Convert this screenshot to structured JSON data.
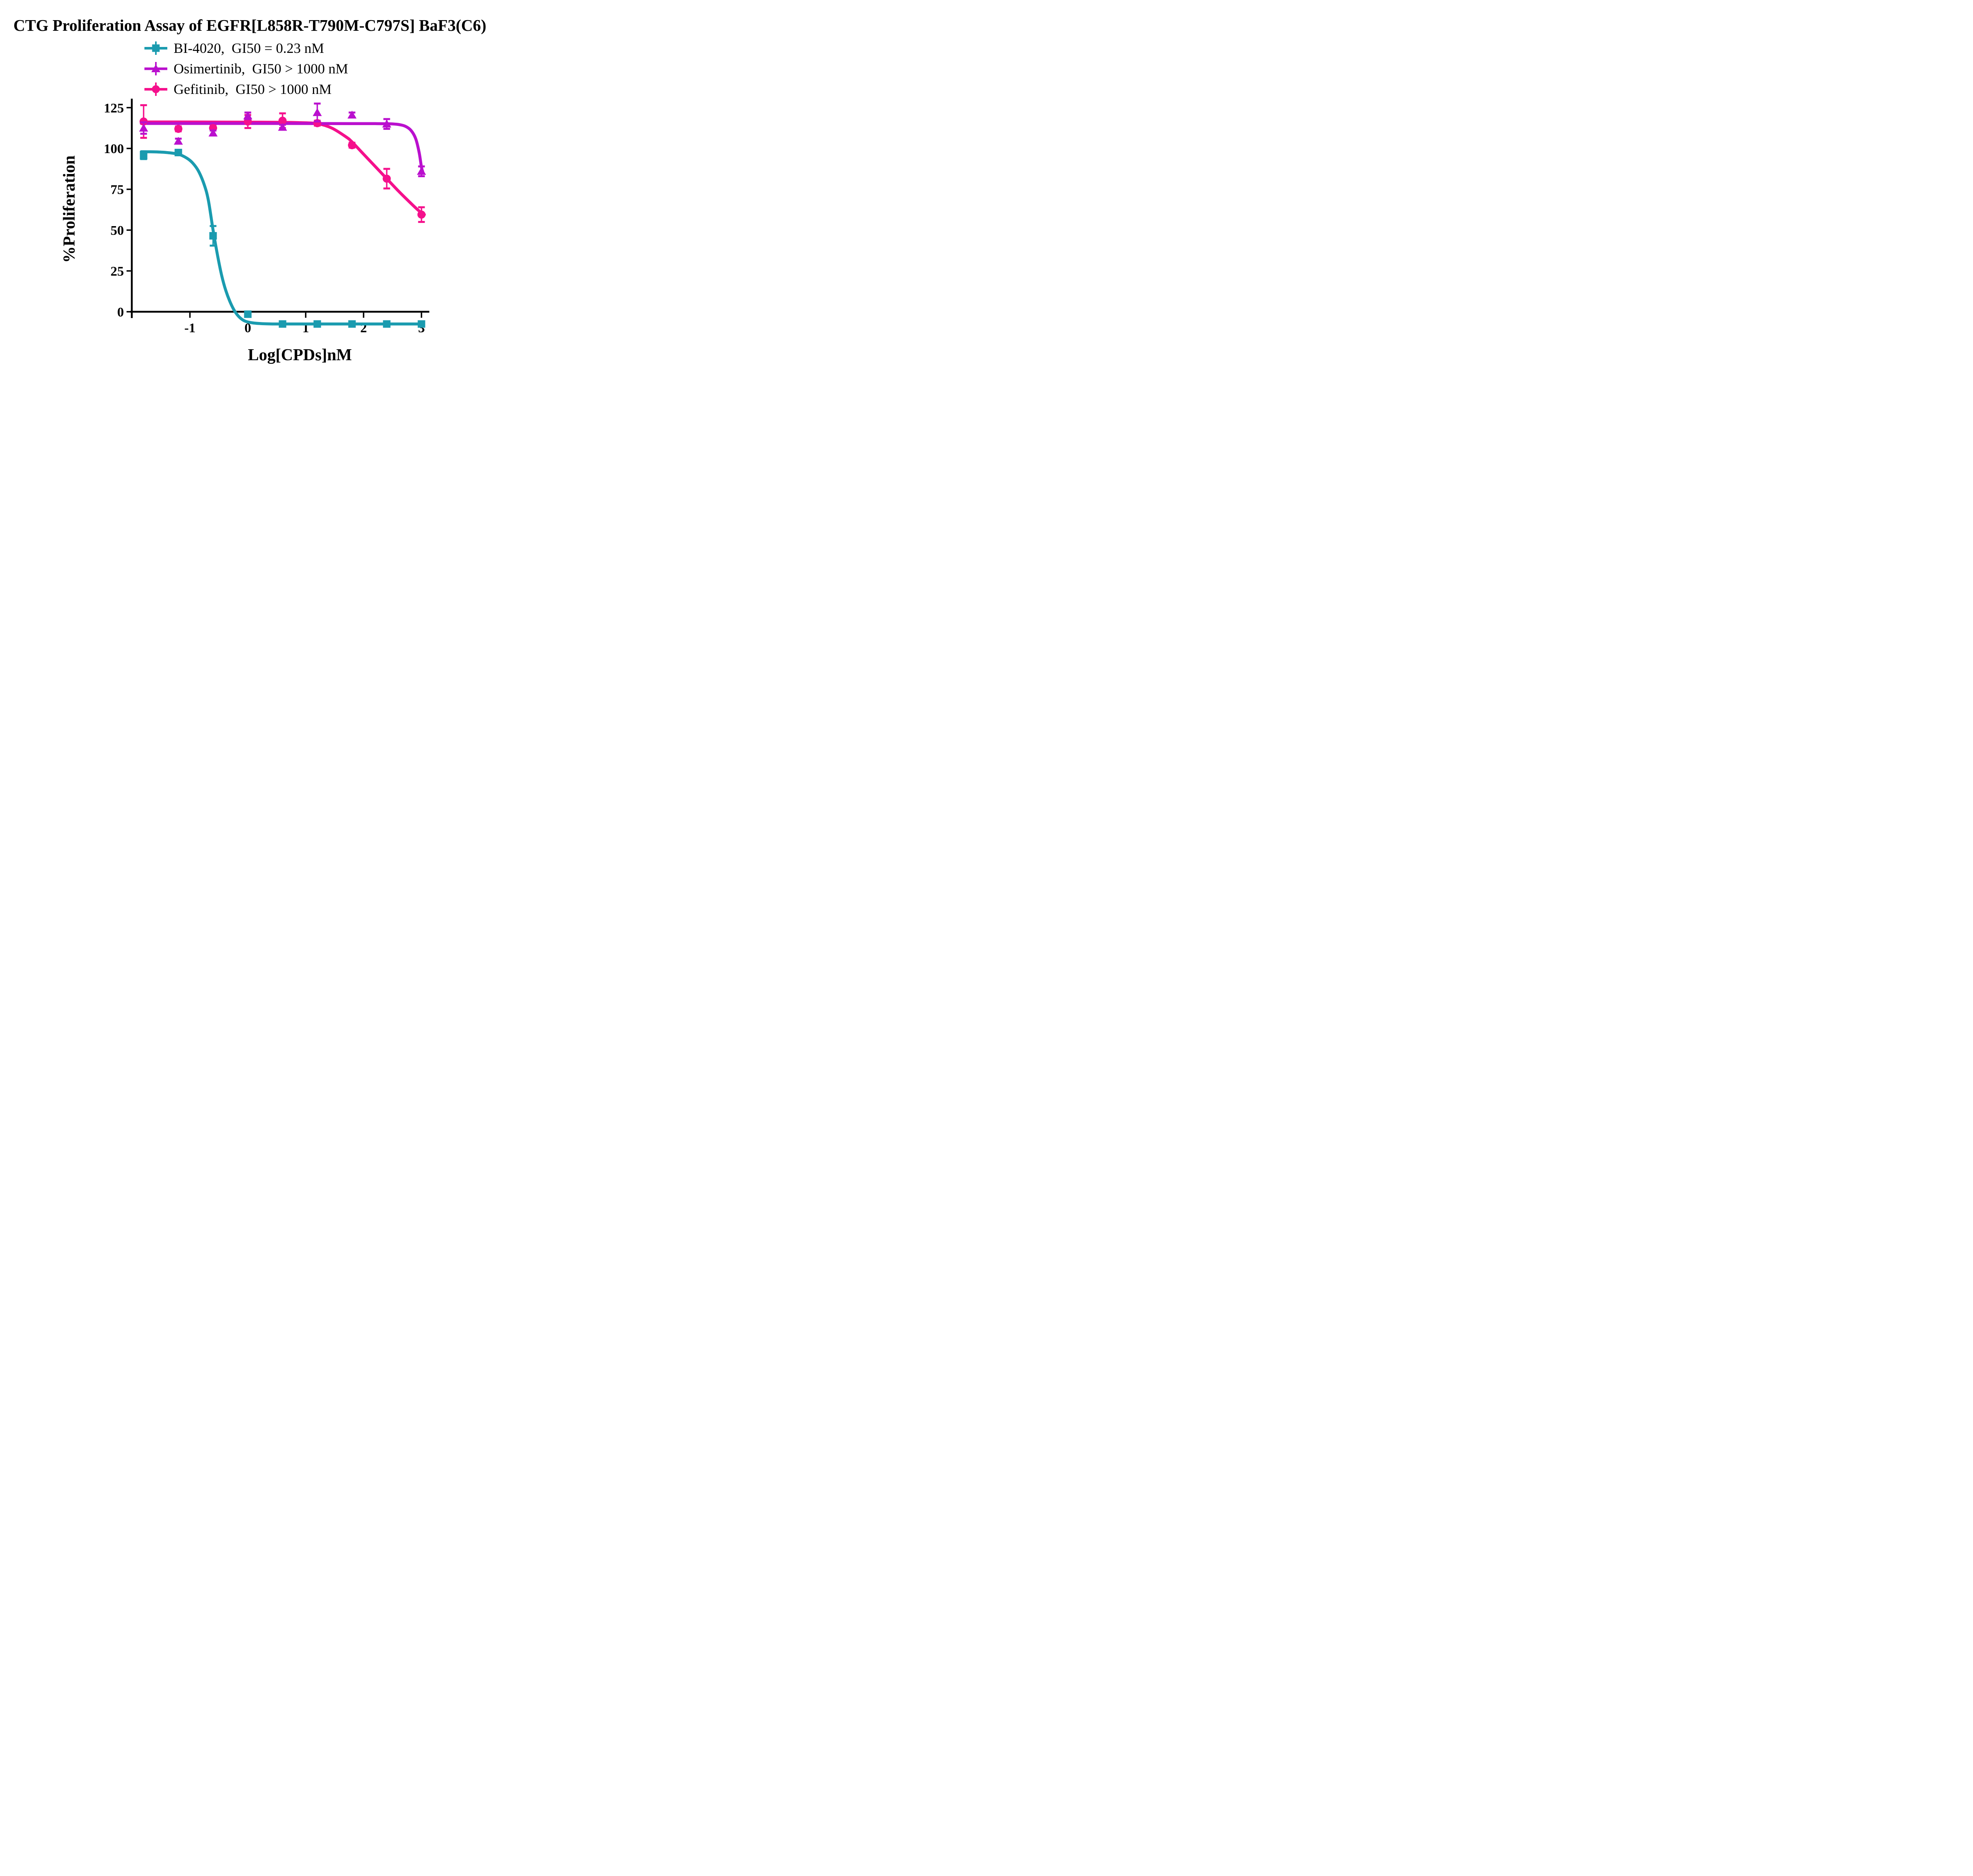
{
  "title": "CTG Proliferation Assay of EGFR[L858R-T790M-C797S] BaF3(C6)",
  "legend": {
    "items": [
      {
        "series": "BI-4020",
        "label": "BI-4020,  GI50 = 0.23 nM"
      },
      {
        "series": "Osimertinib",
        "label": "Osimertinib,  GI50 > 1000 nM"
      },
      {
        "series": "Gefitinib",
        "label": "Gefitinib,  GI50 > 1000 nM"
      }
    ]
  },
  "axes": {
    "x": {
      "label": "Log[CPDs]nM",
      "ticks": [
        "-1",
        "0",
        "1",
        "2",
        "3"
      ],
      "tick_values": [
        -1,
        0,
        1,
        2,
        3
      ]
    },
    "y": {
      "label": "%Proliferation",
      "ticks": [
        "0",
        "25",
        "50",
        "75",
        "100",
        "125"
      ],
      "tick_values": [
        0,
        25,
        50,
        75,
        100,
        125
      ]
    }
  },
  "chart_data": {
    "type": "scatter",
    "subtype": "dose-response with fitted curves and error bars",
    "xlabel": "Log[CPDs]nM",
    "ylabel": "%Proliferation",
    "x_range_shown": [
      -1.9,
      3.1
    ],
    "y_range_shown": [
      -12,
      130
    ],
    "x_values": [
      -1.8,
      -1.2,
      -0.6,
      0,
      0.6,
      1.2,
      1.8,
      2.4,
      3.0
    ],
    "series": [
      {
        "name": "Gefitinib",
        "gi50": "GI50 > 1000 nM",
        "marker": "circle",
        "color": "#F5108C",
        "y": [
          116.5,
          112,
          112.5,
          116.5,
          117,
          115.5,
          102,
          81.5,
          59.5
        ],
        "err": [
          10,
          1.5,
          1.5,
          4,
          4.5,
          1.5,
          1.5,
          6,
          4.5
        ],
        "fit_curve": [
          [
            -1.84,
            116.2
          ],
          [
            -1.2,
            116.2
          ],
          [
            -0.6,
            116.15
          ],
          [
            0,
            116.1
          ],
          [
            0.6,
            116.0
          ],
          [
            0.9,
            115.8
          ],
          [
            1.2,
            115.2
          ],
          [
            1.45,
            112.5
          ],
          [
            1.7,
            107
          ],
          [
            1.8,
            104
          ],
          [
            2.0,
            96.5
          ],
          [
            2.2,
            89
          ],
          [
            2.4,
            81.5
          ],
          [
            2.6,
            74
          ],
          [
            2.8,
            67
          ],
          [
            2.95,
            62
          ],
          [
            3.05,
            59.5
          ]
        ]
      },
      {
        "name": "Osimertinib",
        "gi50": "GI50 > 1000 nM",
        "marker": "triangle",
        "color": "#BA10CE",
        "y": [
          112.5,
          104.5,
          109.5,
          120,
          113,
          122,
          120.5,
          115,
          86
        ],
        "err": [
          3.5,
          1.5,
          1.5,
          2,
          1.5,
          5.5,
          1.5,
          3,
          3
        ],
        "fit_curve": [
          [
            -1.84,
            115.3
          ],
          [
            -1.2,
            115.3
          ],
          [
            -0.6,
            115.3
          ],
          [
            0,
            115.3
          ],
          [
            0.6,
            115.3
          ],
          [
            1.2,
            115.25
          ],
          [
            1.8,
            115.2
          ],
          [
            2.2,
            115.2
          ],
          [
            2.45,
            115.1
          ],
          [
            2.6,
            114.7
          ],
          [
            2.72,
            113.6
          ],
          [
            2.82,
            111
          ],
          [
            2.9,
            106
          ],
          [
            2.96,
            97.5
          ],
          [
            3.0,
            88.5
          ],
          [
            3.02,
            86
          ]
        ]
      },
      {
        "name": "BI-4020",
        "gi50": "GI50 = 0.23 nM",
        "marker": "square",
        "color": "#1A9BAF",
        "y": [
          95.5,
          97.5,
          46.5,
          -1.5,
          -7.5,
          -7.5,
          -7.5,
          -7.5,
          -7.5
        ],
        "err": [
          2,
          1.5,
          6,
          1.5,
          1,
          1,
          1,
          1,
          1
        ],
        "fit_curve": [
          [
            -1.84,
            98
          ],
          [
            -1.6,
            97.9
          ],
          [
            -1.4,
            97.5
          ],
          [
            -1.2,
            96.5
          ],
          [
            -1.05,
            94
          ],
          [
            -0.95,
            91
          ],
          [
            -0.85,
            86
          ],
          [
            -0.75,
            77.5
          ],
          [
            -0.68,
            68
          ],
          [
            -0.6,
            50
          ],
          [
            -0.52,
            34
          ],
          [
            -0.45,
            22
          ],
          [
            -0.38,
            13
          ],
          [
            -0.3,
            5.5
          ],
          [
            -0.22,
            0
          ],
          [
            -0.14,
            -3.5
          ],
          [
            -0.05,
            -5.7
          ],
          [
            0.08,
            -6.8
          ],
          [
            0.25,
            -7.3
          ],
          [
            0.5,
            -7.5
          ],
          [
            1.0,
            -7.5
          ],
          [
            2.0,
            -7.5
          ],
          [
            3.0,
            -7.5
          ]
        ]
      }
    ]
  }
}
